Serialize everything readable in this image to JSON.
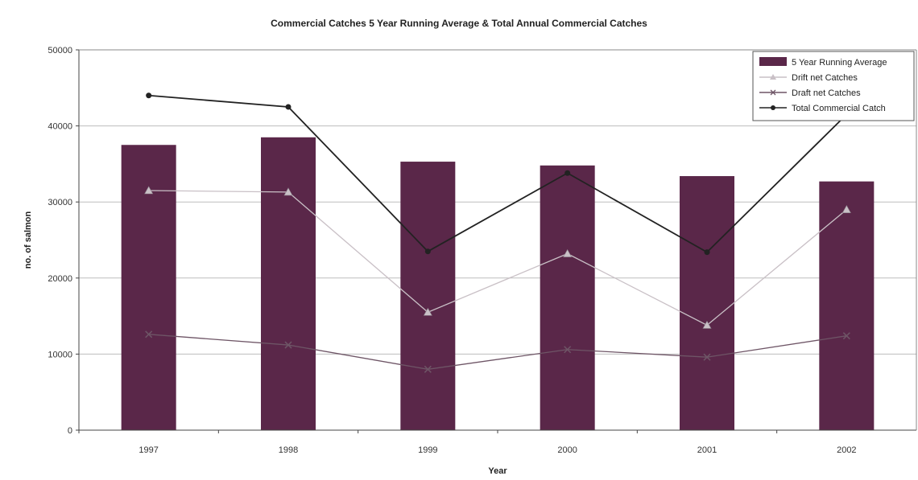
{
  "chart_data": {
    "type": "bar",
    "title": "Commercial Catches 5 Year Running Average & Total Annual Commercial Catches",
    "xlabel": "Year",
    "ylabel": "no. of salmon",
    "ylim": [
      0,
      50000
    ],
    "yticks": [
      0,
      10000,
      20000,
      30000,
      40000,
      50000
    ],
    "categories": [
      "1997",
      "1998",
      "1999",
      "2000",
      "2001",
      "2002"
    ],
    "grid": true,
    "legend_position": "top-right",
    "series": [
      {
        "name": "5 Year Running Average",
        "kind": "bar",
        "color": "#5a2749",
        "values": [
          37500,
          38500,
          35300,
          34800,
          33400,
          32700
        ]
      },
      {
        "name": "Drift net Catches",
        "kind": "line",
        "marker": "triangle",
        "color": "#c9c0c6",
        "values": [
          31500,
          31300,
          15500,
          23200,
          13800,
          29000
        ]
      },
      {
        "name": "Draft net Catches",
        "kind": "line",
        "marker": "x",
        "color": "#6e5566",
        "values": [
          12600,
          11200,
          8000,
          10600,
          9600,
          12400
        ]
      },
      {
        "name": "Total Commercial Catch",
        "kind": "line",
        "marker": "dot",
        "color": "#222222",
        "values": [
          44000,
          42500,
          23500,
          33800,
          23400,
          41500
        ]
      }
    ]
  }
}
